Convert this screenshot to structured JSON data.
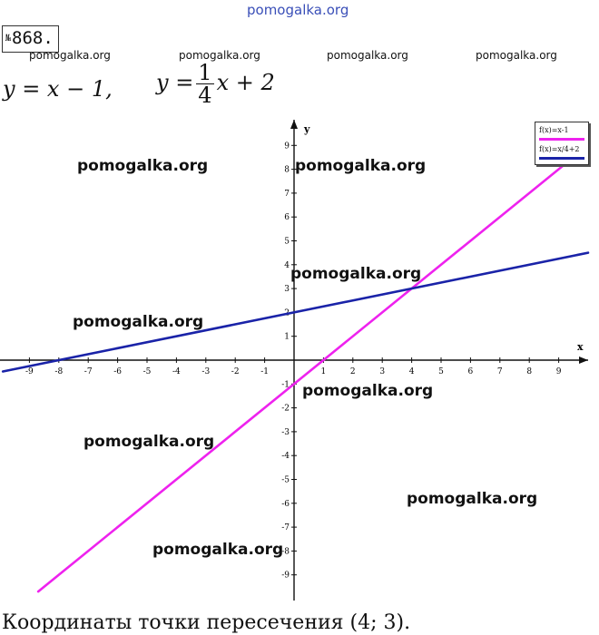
{
  "watermarks": {
    "top": "pomogalka.org",
    "header": [
      "pomogalka.org",
      "pomogalka.org",
      "pomogalka.org",
      "pomogalka.org"
    ],
    "plot": [
      "pomogalka.org",
      "pomogalka.org",
      "pomogalka.org",
      "pomogalka.org",
      "pomogalka.org",
      "pomogalka.org",
      "pomogalka.org",
      "pomogalka.org"
    ]
  },
  "problem": {
    "no_sign": "№",
    "number": "868."
  },
  "formulas": {
    "f1": "y = x − 1,",
    "f2_lhs": "y =",
    "f2_num": "1",
    "f2_den": "4",
    "f2_rhs": "x + 2"
  },
  "chart_data": {
    "type": "line",
    "title": "",
    "xlabel": "x",
    "ylabel": "y",
    "xlim": [
      -10,
      10
    ],
    "ylim": [
      -10,
      10
    ],
    "x_ticks": [
      -9,
      -8,
      -7,
      -6,
      -5,
      -4,
      -3,
      -2,
      -1,
      1,
      2,
      3,
      4,
      5,
      6,
      7,
      8,
      9
    ],
    "y_ticks": [
      -9,
      -8,
      -7,
      -6,
      -5,
      -4,
      -3,
      -2,
      -1,
      1,
      2,
      3,
      4,
      5,
      6,
      7,
      8,
      9
    ],
    "grid": false,
    "legend": "top-right",
    "series": [
      {
        "name": "f(x)=x-1",
        "color": "#ee22ee",
        "points": [
          [
            -8.7,
            -9.7
          ],
          [
            9.2,
            8.2
          ]
        ]
      },
      {
        "name": "f(x)=x/4+2",
        "color": "#1a23a8",
        "points": [
          [
            -9.9,
            -0.475
          ],
          [
            10,
            4.5
          ]
        ]
      }
    ],
    "intersection": [
      4,
      3
    ]
  },
  "answer": "Координаты точки пересечения (4; 3)."
}
